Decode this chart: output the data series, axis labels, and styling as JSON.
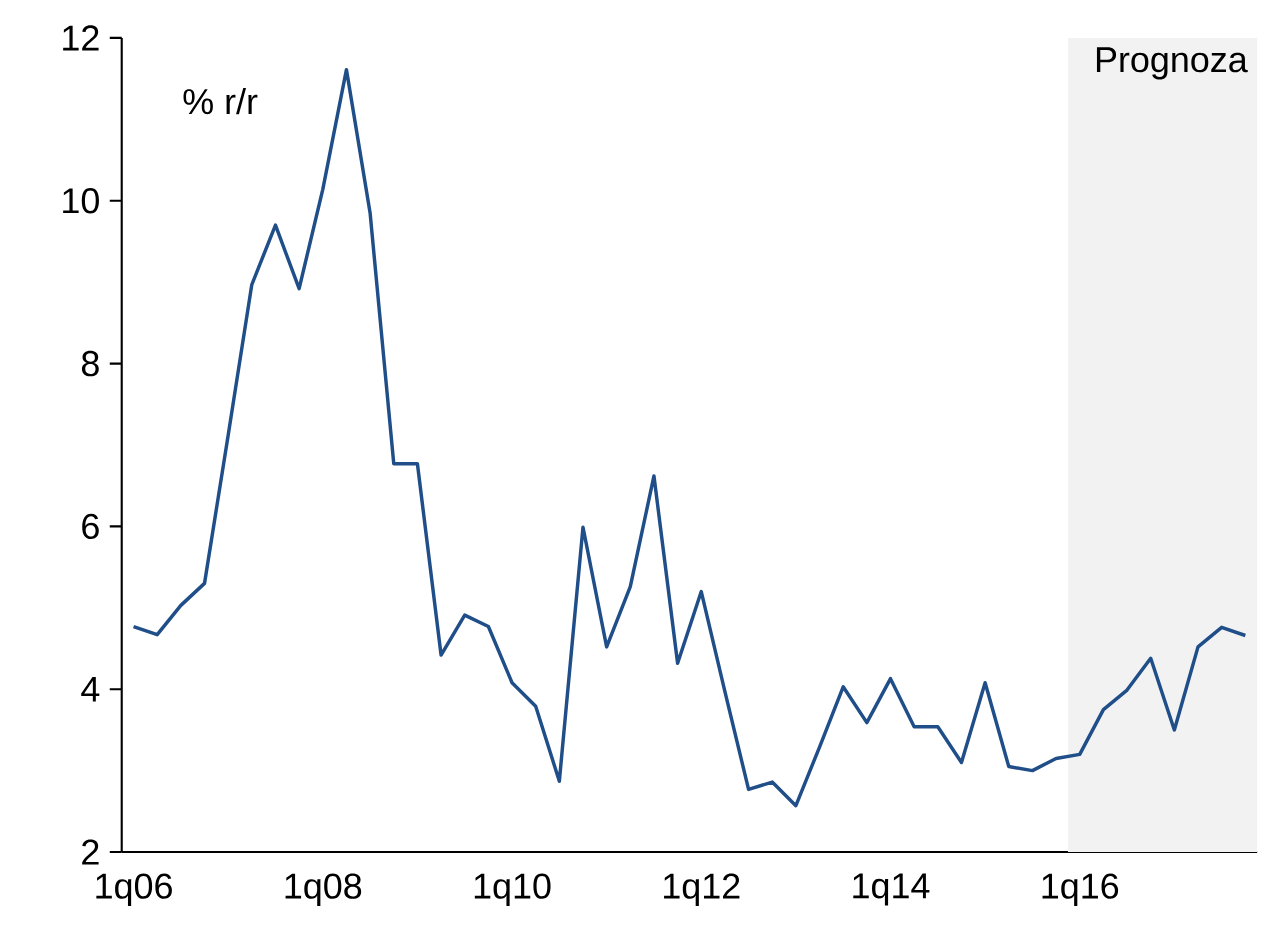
{
  "chart_data": {
    "type": "line",
    "ylabel": "% r/r",
    "categories": [
      "1q06",
      null,
      null,
      null,
      null,
      null,
      null,
      null,
      "1q08",
      null,
      null,
      null,
      null,
      null,
      null,
      null,
      "1q10",
      null,
      null,
      null,
      null,
      null,
      null,
      null,
      "1q12",
      null,
      null,
      null,
      null,
      null,
      null,
      null,
      "1q14",
      null,
      null,
      null,
      null,
      null,
      null,
      null,
      "1q16",
      null,
      null,
      null,
      null,
      null,
      null,
      null
    ],
    "series": [
      {
        "color": "#1f4e89",
        "values": [
          4.77,
          4.67,
          5.03,
          5.3,
          7.12,
          8.97,
          9.7,
          8.92,
          10.14,
          11.61,
          9.85,
          6.77,
          6.77,
          4.42,
          4.91,
          4.77,
          4.08,
          3.79,
          2.87,
          5.99,
          4.52,
          5.26,
          6.62,
          4.32,
          5.2,
          3.97,
          2.77,
          2.86,
          2.57,
          3.29,
          4.03,
          3.59,
          4.13,
          3.54,
          3.54,
          3.1,
          4.08,
          3.05,
          3.0,
          3.15,
          3.2,
          3.75,
          3.99,
          4.38,
          3.5,
          4.52,
          4.76,
          4.66
        ]
      }
    ],
    "ylim": [
      2,
      12
    ],
    "yticks": [
      2,
      4,
      6,
      8,
      10,
      12
    ],
    "annotations": [
      "Prognoza"
    ],
    "grid": false,
    "marker": "none",
    "line_style": "solid"
  }
}
